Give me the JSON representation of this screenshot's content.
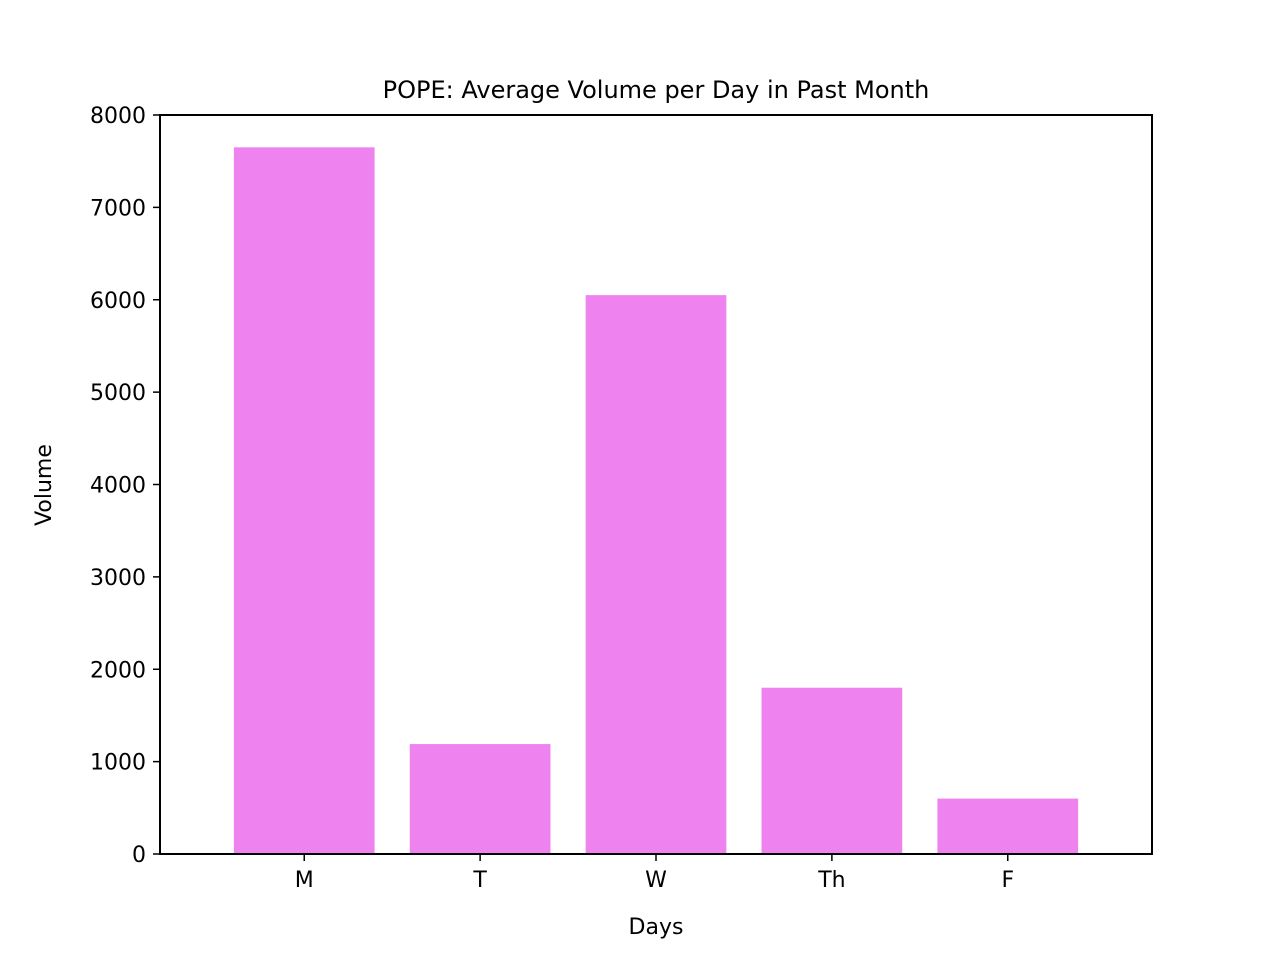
{
  "chart_data": {
    "type": "bar",
    "title": "POPE: Average Volume per Day in Past Month",
    "xlabel": "Days",
    "ylabel": "Volume",
    "categories": [
      "M",
      "T",
      "W",
      "Th",
      "F"
    ],
    "values": [
      7650,
      1190,
      6050,
      1800,
      600
    ],
    "ylim": [
      0,
      8000
    ],
    "yticks": [
      0,
      1000,
      2000,
      3000,
      4000,
      5000,
      6000,
      7000,
      8000
    ],
    "grid": false,
    "legend": false,
    "bar_color": "#ee82ee"
  }
}
